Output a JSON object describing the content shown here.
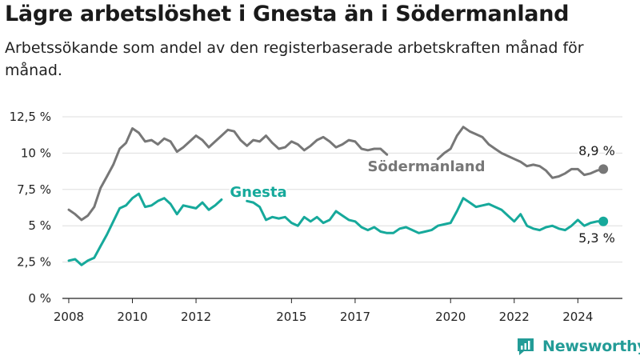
{
  "title": "Lägre arbetslöshet i Gnesta än i Södermanland",
  "subtitle": "Arbetssökande som andel av den registerbaserade arbetskraften månad för månad.",
  "brand": "Newsworthy",
  "colors": {
    "gnesta": "#16a99b",
    "sodermanland": "#777777",
    "grid": "#dddddd",
    "brand": "#239c97"
  },
  "chart_data": {
    "type": "line",
    "ylim": [
      0,
      12.5
    ],
    "yticks": [
      {
        "v": 0,
        "label": "0 %"
      },
      {
        "v": 2.5,
        "label": "2,5 %"
      },
      {
        "v": 5,
        "label": "5 %"
      },
      {
        "v": 7.5,
        "label": "7,5 %"
      },
      {
        "v": 10,
        "label": "10 %"
      },
      {
        "v": 12.5,
        "label": "12,5 %"
      }
    ],
    "xlim": [
      2007.8,
      2025.4
    ],
    "xticks": [
      {
        "v": 2008,
        "label": "2008"
      },
      {
        "v": 2010,
        "label": "2010"
      },
      {
        "v": 2012,
        "label": "2012"
      },
      {
        "v": 2015,
        "label": "2015"
      },
      {
        "v": 2017,
        "label": "2017"
      },
      {
        "v": 2020,
        "label": "2020"
      },
      {
        "v": 2022,
        "label": "2022"
      },
      {
        "v": 2024,
        "label": "2024"
      }
    ],
    "series": [
      {
        "name": "Södermanland",
        "end_label": "8,9 %",
        "segments": [
          [
            [
              2008.0,
              6.1
            ],
            [
              2008.2,
              5.8
            ],
            [
              2008.4,
              5.4
            ],
            [
              2008.6,
              5.7
            ],
            [
              2008.8,
              6.3
            ],
            [
              2009.0,
              7.6
            ],
            [
              2009.2,
              8.4
            ],
            [
              2009.4,
              9.2
            ],
            [
              2009.6,
              10.3
            ],
            [
              2009.8,
              10.7
            ],
            [
              2010.0,
              11.7
            ],
            [
              2010.2,
              11.4
            ],
            [
              2010.4,
              10.8
            ],
            [
              2010.6,
              10.9
            ],
            [
              2010.8,
              10.6
            ],
            [
              2011.0,
              11.0
            ],
            [
              2011.2,
              10.8
            ],
            [
              2011.4,
              10.1
            ],
            [
              2011.6,
              10.4
            ],
            [
              2011.8,
              10.8
            ],
            [
              2012.0,
              11.2
            ],
            [
              2012.2,
              10.9
            ],
            [
              2012.4,
              10.4
            ],
            [
              2012.6,
              10.8
            ],
            [
              2012.8,
              11.2
            ],
            [
              2013.0,
              11.6
            ],
            [
              2013.2,
              11.5
            ],
            [
              2013.4,
              10.9
            ],
            [
              2013.6,
              10.5
            ],
            [
              2013.8,
              10.9
            ],
            [
              2014.0,
              10.8
            ],
            [
              2014.2,
              11.2
            ],
            [
              2014.4,
              10.7
            ],
            [
              2014.6,
              10.3
            ],
            [
              2014.8,
              10.4
            ],
            [
              2015.0,
              10.8
            ],
            [
              2015.2,
              10.6
            ],
            [
              2015.4,
              10.2
            ],
            [
              2015.6,
              10.5
            ],
            [
              2015.8,
              10.9
            ],
            [
              2016.0,
              11.1
            ],
            [
              2016.2,
              10.8
            ],
            [
              2016.4,
              10.4
            ],
            [
              2016.6,
              10.6
            ],
            [
              2016.8,
              10.9
            ],
            [
              2017.0,
              10.8
            ],
            [
              2017.2,
              10.3
            ],
            [
              2017.4,
              10.2
            ],
            [
              2017.6,
              10.3
            ],
            [
              2017.8,
              10.3
            ],
            [
              2018.0,
              9.9
            ]
          ],
          [
            [
              2019.6,
              9.6
            ],
            [
              2019.8,
              10.0
            ],
            [
              2020.0,
              10.3
            ],
            [
              2020.2,
              11.2
            ],
            [
              2020.4,
              11.8
            ],
            [
              2020.6,
              11.5
            ],
            [
              2020.8,
              11.3
            ],
            [
              2021.0,
              11.1
            ],
            [
              2021.2,
              10.6
            ],
            [
              2021.4,
              10.3
            ],
            [
              2021.6,
              10.0
            ],
            [
              2021.8,
              9.8
            ],
            [
              2022.0,
              9.6
            ],
            [
              2022.2,
              9.4
            ],
            [
              2022.4,
              9.1
            ],
            [
              2022.6,
              9.2
            ],
            [
              2022.8,
              9.1
            ],
            [
              2023.0,
              8.8
            ],
            [
              2023.2,
              8.3
            ],
            [
              2023.4,
              8.4
            ],
            [
              2023.6,
              8.6
            ],
            [
              2023.8,
              8.9
            ],
            [
              2024.0,
              8.9
            ],
            [
              2024.2,
              8.5
            ],
            [
              2024.4,
              8.6
            ],
            [
              2024.6,
              8.8
            ],
            [
              2024.8,
              8.9
            ]
          ]
        ]
      },
      {
        "name": "Gnesta",
        "end_label": "5,3 %",
        "segments": [
          [
            [
              2008.0,
              2.6
            ],
            [
              2008.2,
              2.7
            ],
            [
              2008.4,
              2.3
            ],
            [
              2008.6,
              2.6
            ],
            [
              2008.8,
              2.8
            ],
            [
              2009.0,
              3.6
            ],
            [
              2009.2,
              4.4
            ],
            [
              2009.4,
              5.3
            ],
            [
              2009.6,
              6.2
            ],
            [
              2009.8,
              6.4
            ],
            [
              2010.0,
              6.9
            ],
            [
              2010.2,
              7.2
            ],
            [
              2010.4,
              6.3
            ],
            [
              2010.6,
              6.4
            ],
            [
              2010.8,
              6.7
            ],
            [
              2011.0,
              6.9
            ],
            [
              2011.2,
              6.5
            ],
            [
              2011.4,
              5.8
            ],
            [
              2011.6,
              6.4
            ],
            [
              2011.8,
              6.3
            ],
            [
              2012.0,
              6.2
            ],
            [
              2012.2,
              6.6
            ],
            [
              2012.4,
              6.1
            ],
            [
              2012.6,
              6.4
            ],
            [
              2012.8,
              6.8
            ]
          ],
          [
            [
              2013.6,
              6.7
            ],
            [
              2013.8,
              6.6
            ],
            [
              2014.0,
              6.3
            ],
            [
              2014.2,
              5.4
            ],
            [
              2014.4,
              5.6
            ],
            [
              2014.6,
              5.5
            ],
            [
              2014.8,
              5.6
            ],
            [
              2015.0,
              5.2
            ],
            [
              2015.2,
              5.0
            ],
            [
              2015.4,
              5.6
            ],
            [
              2015.6,
              5.3
            ],
            [
              2015.8,
              5.6
            ],
            [
              2016.0,
              5.2
            ],
            [
              2016.2,
              5.4
            ],
            [
              2016.4,
              6.0
            ],
            [
              2016.6,
              5.7
            ],
            [
              2016.8,
              5.4
            ],
            [
              2017.0,
              5.3
            ],
            [
              2017.2,
              4.9
            ],
            [
              2017.4,
              4.7
            ],
            [
              2017.6,
              4.9
            ],
            [
              2017.8,
              4.6
            ],
            [
              2018.0,
              4.5
            ],
            [
              2018.2,
              4.5
            ],
            [
              2018.4,
              4.8
            ],
            [
              2018.6,
              4.9
            ],
            [
              2018.8,
              4.7
            ],
            [
              2019.0,
              4.5
            ],
            [
              2019.2,
              4.6
            ],
            [
              2019.4,
              4.7
            ],
            [
              2019.6,
              5.0
            ],
            [
              2019.8,
              5.1
            ],
            [
              2020.0,
              5.2
            ],
            [
              2020.2,
              6.0
            ],
            [
              2020.4,
              6.9
            ],
            [
              2020.6,
              6.6
            ],
            [
              2020.8,
              6.3
            ],
            [
              2021.0,
              6.4
            ],
            [
              2021.2,
              6.5
            ],
            [
              2021.4,
              6.3
            ],
            [
              2021.6,
              6.1
            ],
            [
              2021.8,
              5.7
            ],
            [
              2022.0,
              5.3
            ],
            [
              2022.2,
              5.8
            ],
            [
              2022.4,
              5.0
            ],
            [
              2022.6,
              4.8
            ],
            [
              2022.8,
              4.7
            ],
            [
              2023.0,
              4.9
            ],
            [
              2023.2,
              5.0
            ],
            [
              2023.4,
              4.8
            ],
            [
              2023.6,
              4.7
            ],
            [
              2023.8,
              5.0
            ],
            [
              2024.0,
              5.4
            ],
            [
              2024.2,
              5.0
            ],
            [
              2024.4,
              5.2
            ],
            [
              2024.6,
              5.3
            ],
            [
              2024.8,
              5.3
            ]
          ]
        ]
      }
    ]
  }
}
